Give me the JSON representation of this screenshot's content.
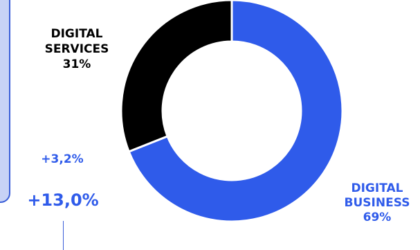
{
  "chart_data": {
    "type": "pie",
    "donut": true,
    "categories": [
      "DIGITAL BUSINESS",
      "DIGITAL SERVICES"
    ],
    "values": [
      69,
      31
    ],
    "colors": [
      "#2f5bea",
      "#000000"
    ],
    "labels": {
      "services": {
        "line1": "DIGITAL",
        "line2": "SERVICES",
        "line3": "31%"
      },
      "business": {
        "line1": "DIGITAL",
        "line2": "BUSINESS",
        "line3": "69%"
      }
    }
  },
  "kpis": {
    "small": "+3,2%",
    "large": "+13,0%"
  },
  "colors": {
    "accent_blue": "#2f5bea",
    "panel_fill": "#c7d2f6",
    "panel_border": "#3a5ed8"
  }
}
